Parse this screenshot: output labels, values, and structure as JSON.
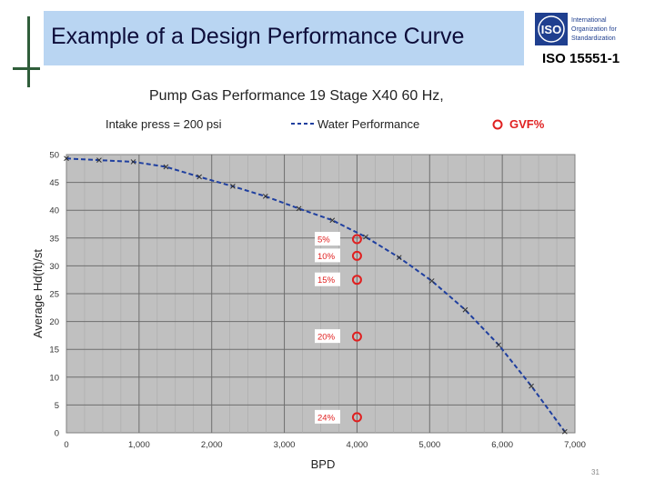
{
  "slide": {
    "title": "Example of a Design Performance Curve",
    "standard": "ISO 15551-1",
    "page_number": "31",
    "iso_logo": {
      "mark": "ISO",
      "lines": [
        "International",
        "Organization for",
        "Standardization"
      ],
      "color": "#1f3f8f"
    }
  },
  "chart_data": {
    "type": "line",
    "title": "Pump Gas Performance  19 Stage X40 60 Hz,",
    "subtitle_left": "Intake press = 200 psi",
    "legend": [
      {
        "label": "Water Performance",
        "style": "dashed-line",
        "color": "#1f3f9f"
      },
      {
        "label": "GVF%",
        "style": "circle-marker",
        "color": "#e02020"
      }
    ],
    "xlabel": "BPD",
    "ylabel": "Average Hd(ft)/st",
    "xlim": [
      0,
      7000
    ],
    "ylim": [
      0,
      50
    ],
    "x_ticks": [
      0,
      1000,
      2000,
      3000,
      4000,
      5000,
      6000,
      7000
    ],
    "x_tick_labels": [
      "0",
      "1,000",
      "2,000",
      "3,000",
      "4,000",
      "5,000",
      "6,000",
      "7,000"
    ],
    "y_ticks": [
      0,
      5,
      10,
      15,
      20,
      25,
      30,
      35,
      40,
      45,
      50
    ],
    "y_tick_labels": [
      "0",
      "5",
      "10",
      "15",
      "20",
      "25",
      "30",
      "35",
      "40",
      "45",
      "50"
    ],
    "plot_background": "#c0c0c0",
    "grid": true,
    "series": [
      {
        "name": "Water Performance",
        "x": [
          0,
          450,
          920,
          1370,
          1830,
          2290,
          2740,
          3200,
          3660,
          4120,
          4580,
          5030,
          5490,
          5950,
          6400,
          6860
        ],
        "y": [
          49.3,
          49.0,
          48.7,
          47.8,
          46.0,
          44.3,
          42.5,
          40.3,
          38.2,
          35.2,
          31.5,
          27.3,
          22.1,
          15.8,
          8.4,
          0.2
        ]
      }
    ],
    "gvf_points": [
      {
        "label": "5%",
        "x": 4000,
        "y": 34.8
      },
      {
        "label": "10%",
        "x": 4000,
        "y": 31.8
      },
      {
        "label": "15%",
        "x": 4000,
        "y": 27.5
      },
      {
        "label": "20%",
        "x": 4000,
        "y": 17.3
      },
      {
        "label": "24%",
        "x": 4000,
        "y": 2.8
      }
    ]
  }
}
